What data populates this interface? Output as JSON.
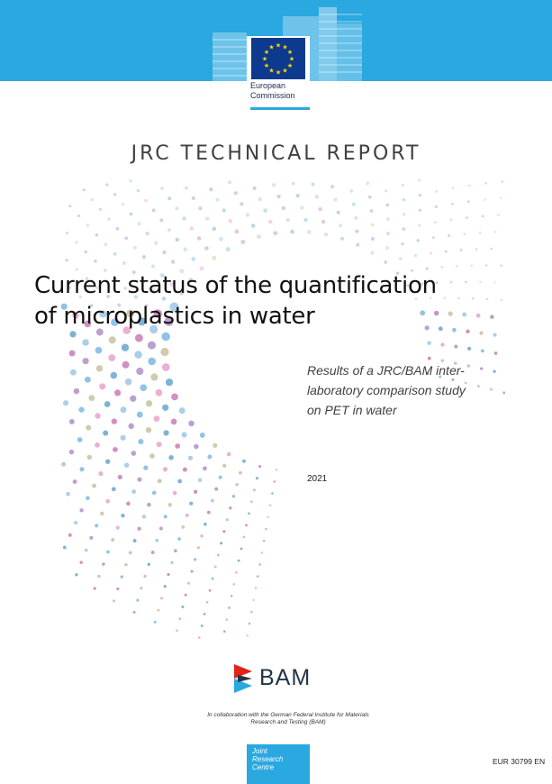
{
  "header": {
    "logo_line1": "European",
    "logo_line2": "Commission",
    "band_color": "#2aa8e0",
    "flag_color": "#0d3a8e",
    "star_color": "#ffde00"
  },
  "report_type": "JRC TECHNICAL REPORT",
  "title_line1": "Current status of the quantification",
  "title_line2": "of microplastics in water",
  "subtitle_line1": "Results of a JRC/BAM inter-",
  "subtitle_line2": "laboratory comparison study",
  "subtitle_line3": "on PET in water",
  "year": "2021",
  "partner_logo_text": "BAM",
  "collab_line1": "In collaboration with the German Federal Institute for Materials",
  "collab_line2": "Research and Testing (BAM)",
  "jrc": {
    "line1": "Joint",
    "line2": "Research",
    "line3": "Centre"
  },
  "report_number": "EUR 30799 EN"
}
